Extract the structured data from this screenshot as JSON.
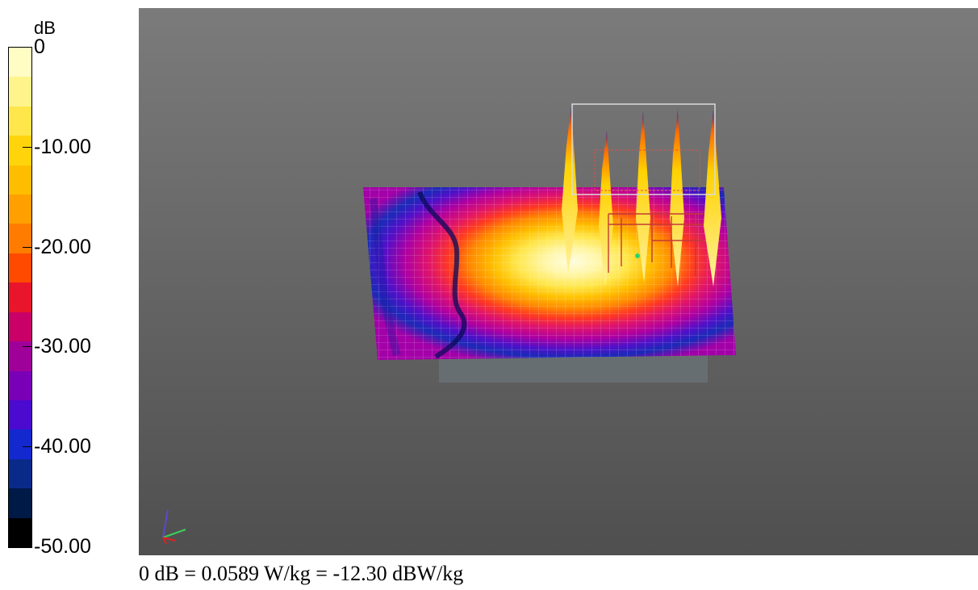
{
  "colorbar": {
    "unit": "dB",
    "ticks": [
      {
        "label": "0",
        "value": 0
      },
      {
        "label": "-10.00",
        "value": -10
      },
      {
        "label": "-20.00",
        "value": -20
      },
      {
        "label": "-30.00",
        "value": -30
      },
      {
        "label": "-40.00",
        "value": -40
      },
      {
        "label": "-50.00",
        "value": -50
      }
    ],
    "range": [
      -50,
      0
    ],
    "bands": [
      "#fffcc4",
      "#fff48c",
      "#ffe64a",
      "#ffd40a",
      "#ffbd00",
      "#ffa000",
      "#ff7c00",
      "#ff4a00",
      "#e8152c",
      "#c80068",
      "#a0009a",
      "#7a00b8",
      "#4a0ad0",
      "#1428d0",
      "#0a2a8a",
      "#001a48",
      "#000000"
    ]
  },
  "caption": "0 dB = 0.0589 W/kg = -12.30 dBW/kg",
  "viewport": {
    "background_top": "#7b7b7b",
    "background_bottom": "#4f4f4f",
    "axis_icon": "xyz-axes-icon"
  }
}
